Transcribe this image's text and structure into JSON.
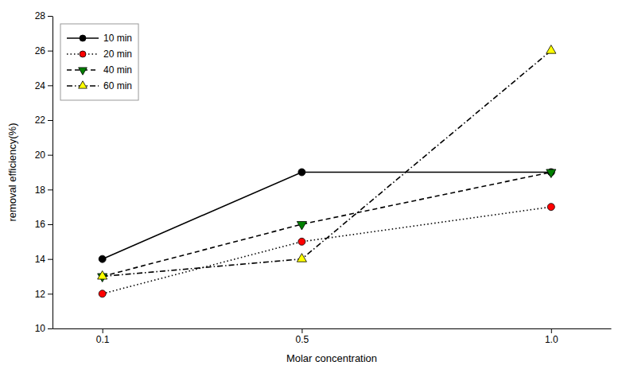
{
  "chart_data": {
    "type": "line",
    "xlabel": "Molar concentration",
    "ylabel": "removal efficiency(%)",
    "x": [
      0.1,
      0.5,
      1.0
    ],
    "series": [
      {
        "name": "10 min",
        "values": [
          14,
          19,
          19
        ],
        "color": "black",
        "line_style": "solid",
        "marker": "circle",
        "colors": [
          "black",
          "black",
          "black"
        ]
      },
      {
        "name": "20 min",
        "values": [
          12,
          15,
          17
        ],
        "color": "black",
        "line_style": "dotted",
        "marker": "circle",
        "colors": [
          "red",
          "red",
          "red"
        ]
      },
      {
        "name": "40 min",
        "values": [
          13,
          16,
          19
        ],
        "color": "black",
        "line_style": "dashed",
        "marker": "triangle-down",
        "colors": [
          "green",
          "green",
          "green"
        ]
      },
      {
        "name": "60 min",
        "values": [
          13,
          14,
          26
        ],
        "color": "black",
        "line_style": "dashdot",
        "marker": "triangle-up",
        "colors": [
          "yellow",
          "yellow",
          "yellow"
        ]
      }
    ],
    "xlim": [
      0.0,
      1.12
    ],
    "xticks": [
      0.1,
      0.5,
      {
        "value": 1.0,
        "label": "1.0"
      }
    ],
    "ylim": [
      10,
      28
    ],
    "yticks": [
      10,
      12,
      14,
      16,
      18,
      20,
      22,
      24,
      26,
      28
    ],
    "legend": "upper left",
    "grid": false
  }
}
